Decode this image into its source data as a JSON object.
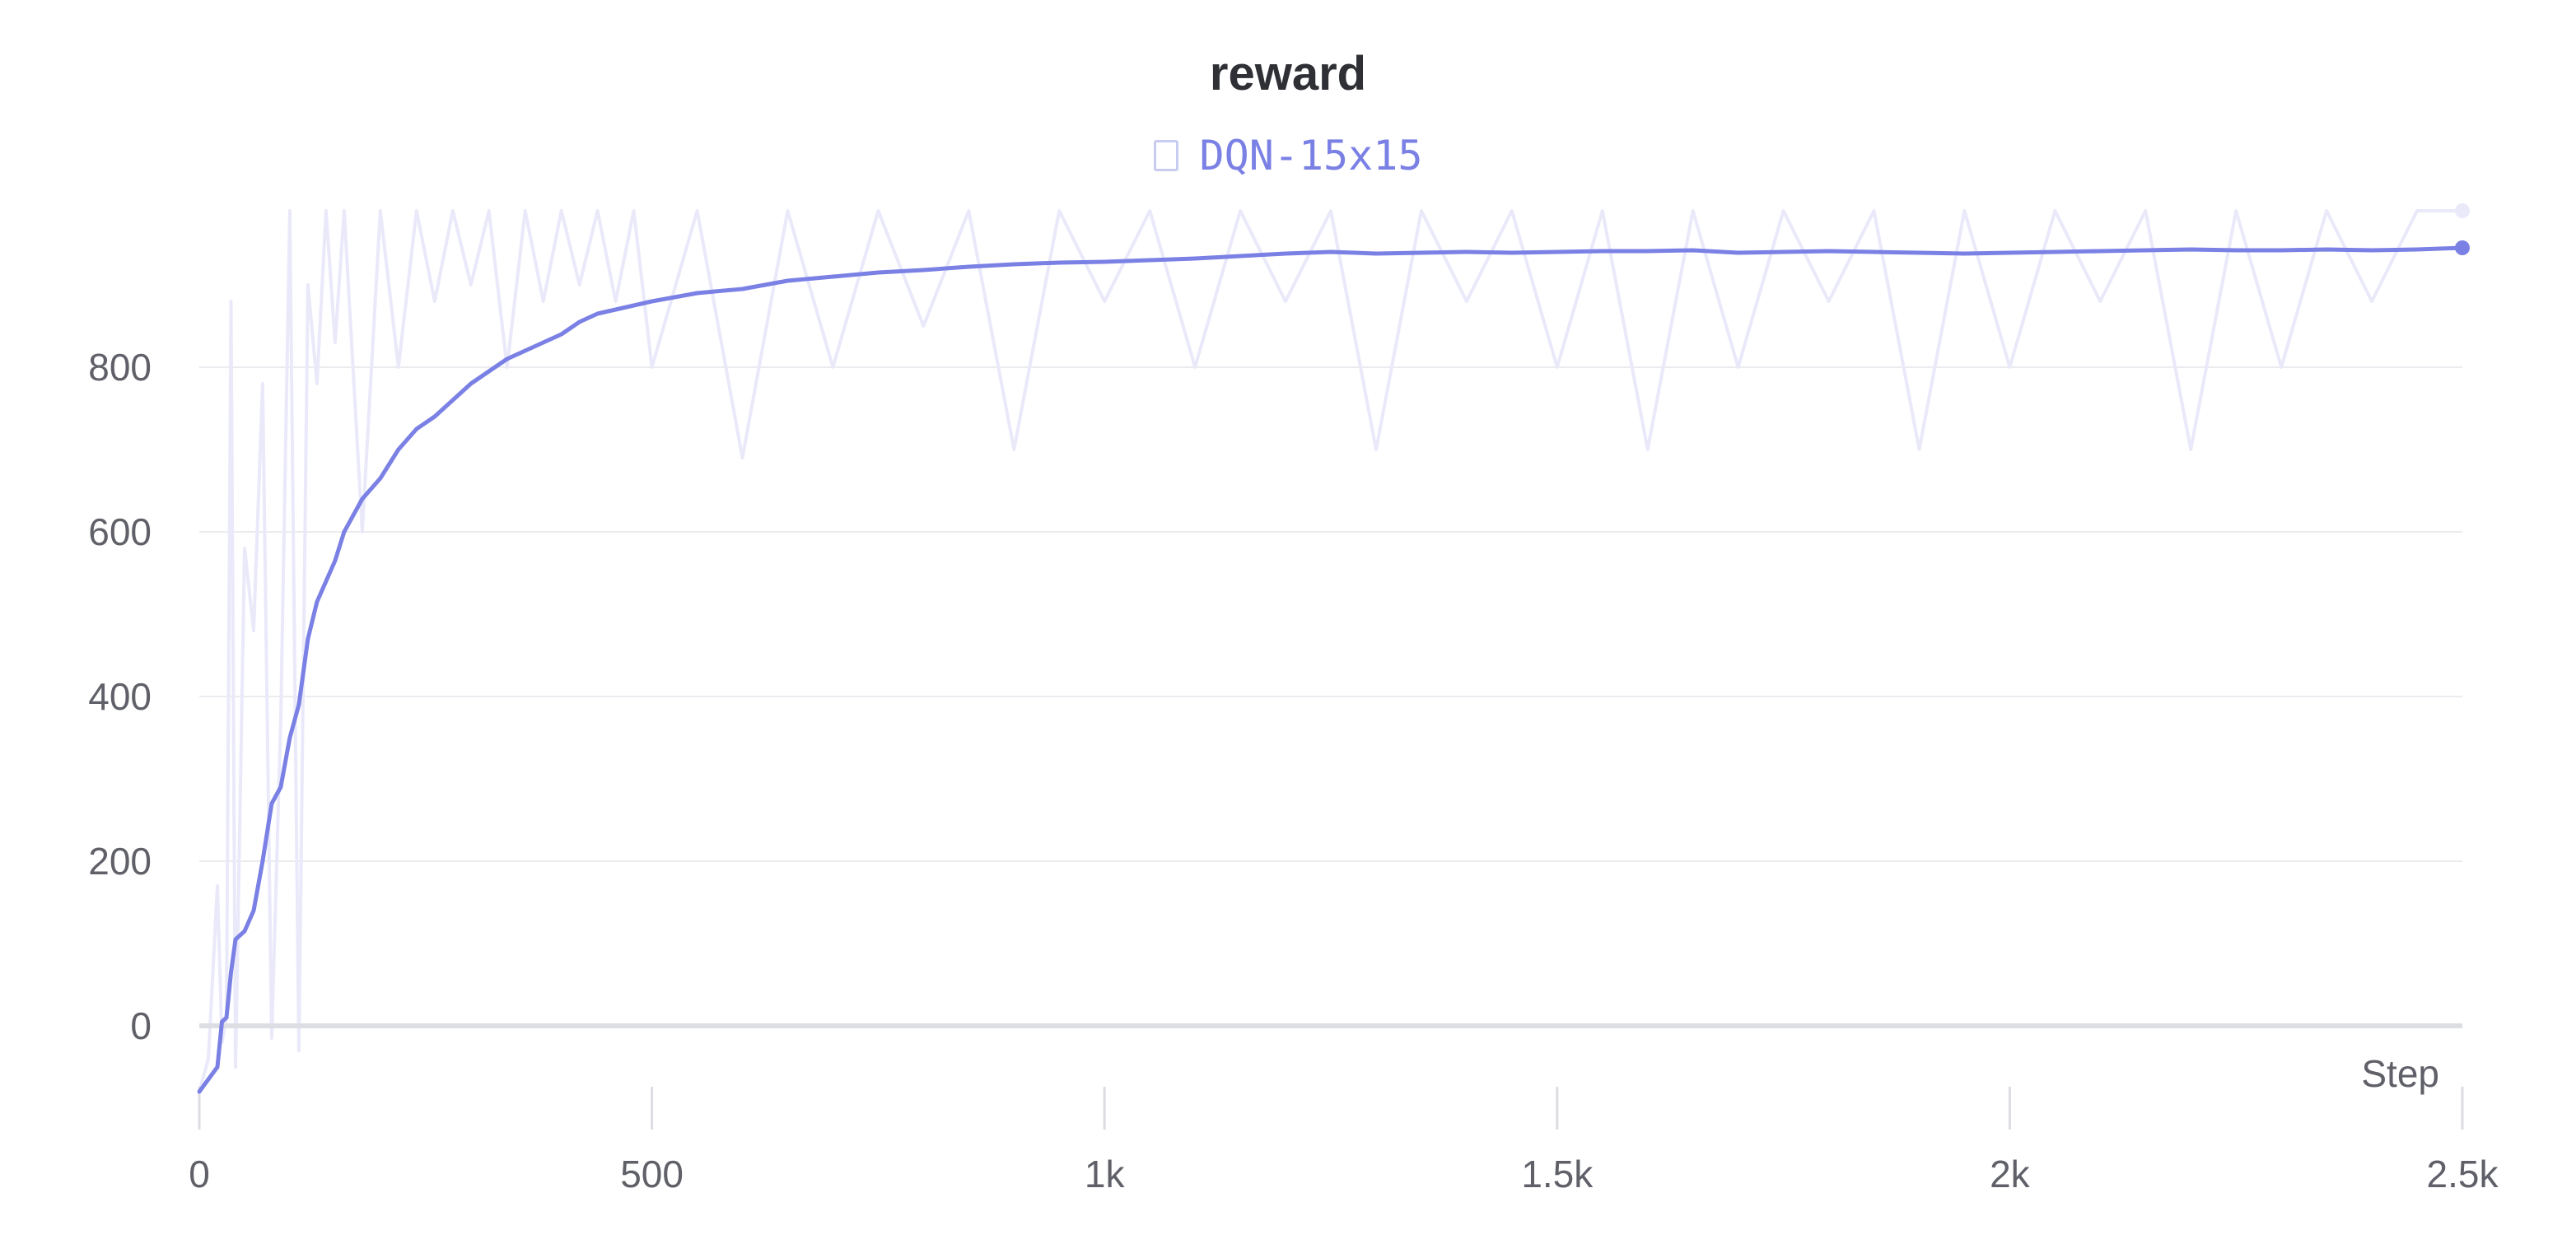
{
  "chart_data": {
    "type": "line",
    "title": "reward",
    "xlabel": "Step",
    "ylabel": "",
    "xlim": [
      0,
      2500
    ],
    "ylim": [
      -110,
      1000
    ],
    "x_ticks": [
      0,
      500,
      1000,
      1500,
      2000,
      2500
    ],
    "x_tick_labels": [
      "0",
      "500",
      "1k",
      "1.5k",
      "2k",
      "2.5k"
    ],
    "y_ticks": [
      0,
      200,
      400,
      600,
      800
    ],
    "y_tick_labels": [
      "0",
      "200",
      "400",
      "600",
      "800"
    ],
    "grid": true,
    "legend": "top-center",
    "series": [
      {
        "name": "DQN-15x15",
        "color": "#7a80e4",
        "raw_color": "#e9e9fa",
        "x": [
          0,
          10,
          20,
          25,
          30,
          35,
          40,
          50,
          60,
          70,
          80,
          90,
          100,
          110,
          120,
          130,
          140,
          150,
          160,
          180,
          200,
          220,
          240,
          260,
          280,
          300,
          320,
          340,
          360,
          380,
          400,
          420,
          440,
          460,
          480,
          500,
          550,
          600,
          650,
          700,
          750,
          800,
          850,
          900,
          950,
          1000,
          1050,
          1100,
          1150,
          1200,
          1250,
          1300,
          1350,
          1400,
          1450,
          1500,
          1550,
          1600,
          1650,
          1700,
          1750,
          1800,
          1850,
          1900,
          1950,
          2000,
          2050,
          2100,
          2150,
          2200,
          2250,
          2300,
          2350,
          2400,
          2450,
          2500
        ],
        "smoothed": [
          -80,
          -65,
          -50,
          5,
          10,
          65,
          105,
          115,
          140,
          200,
          270,
          290,
          350,
          390,
          470,
          515,
          540,
          565,
          600,
          640,
          665,
          700,
          725,
          740,
          760,
          780,
          795,
          810,
          820,
          830,
          840,
          855,
          865,
          870,
          875,
          880,
          890,
          895,
          905,
          910,
          915,
          918,
          922,
          925,
          927,
          928,
          930,
          932,
          935,
          938,
          940,
          938,
          939,
          940,
          939,
          940,
          941,
          941,
          942,
          939,
          940,
          941,
          940,
          939,
          938,
          939,
          940,
          941,
          942,
          943,
          942,
          942,
          943,
          942,
          943,
          945
        ],
        "raw": [
          -80,
          -40,
          170,
          -20,
          10,
          880,
          -50,
          580,
          480,
          780,
          -15,
          370,
          990,
          -30,
          900,
          780,
          990,
          830,
          990,
          600,
          990,
          800,
          990,
          880,
          990,
          900,
          990,
          800,
          990,
          880,
          990,
          900,
          990,
          880,
          990,
          800,
          990,
          690,
          990,
          800,
          990,
          850,
          990,
          700,
          990,
          880,
          990,
          800,
          990,
          880,
          990,
          700,
          990,
          880,
          990,
          800,
          990,
          700,
          990,
          800,
          990,
          880,
          990,
          700,
          990,
          800,
          990,
          880,
          990,
          700,
          990,
          800,
          990,
          880,
          990,
          990
        ]
      }
    ]
  }
}
